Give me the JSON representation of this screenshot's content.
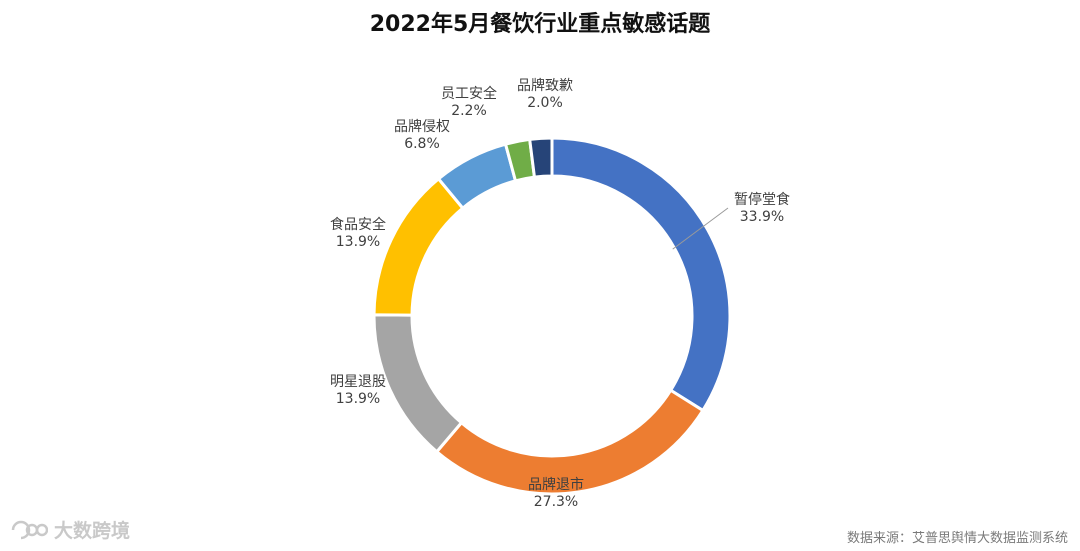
{
  "chart_data": {
    "type": "pie",
    "title": "2022年5月餐饮行业重点敏感话题",
    "donut": true,
    "slices": [
      {
        "label": "暂停堂食",
        "value": 33.9,
        "display": "33.9%",
        "color": "#4472C4"
      },
      {
        "label": "品牌退市",
        "value": 27.3,
        "display": "27.3%",
        "color": "#ED7D31"
      },
      {
        "label": "明星退股",
        "value": 13.9,
        "display": "13.9%",
        "color": "#A5A5A5"
      },
      {
        "label": "食品安全",
        "value": 13.9,
        "display": "13.9%",
        "color": "#FFC000"
      },
      {
        "label": "品牌侵权",
        "value": 6.8,
        "display": "6.8%",
        "color": "#5B9BD5"
      },
      {
        "label": "员工安全",
        "value": 2.2,
        "display": "2.2%",
        "color": "#70AD47"
      },
      {
        "label": "品牌致歉",
        "value": 2.0,
        "display": "2.0%",
        "color": "#264478"
      }
    ]
  },
  "footer": {
    "brand": "大数跨境",
    "source": "数据来源：艾普思舆情大数据监测系统"
  }
}
